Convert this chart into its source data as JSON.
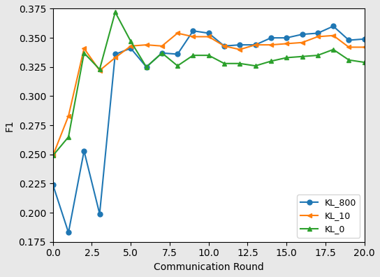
{
  "title": "",
  "xlabel": "Communication Round",
  "ylabel": "F1",
  "xlim": [
    0,
    20
  ],
  "ylim": [
    0.175,
    0.375
  ],
  "yticks": [
    0.175,
    0.2,
    0.225,
    0.25,
    0.275,
    0.3,
    0.325,
    0.35,
    0.375
  ],
  "xticks": [
    0.0,
    2.5,
    5.0,
    7.5,
    10.0,
    12.5,
    15.0,
    17.5,
    20.0
  ],
  "kl_800": {
    "x": [
      0,
      1,
      2,
      3,
      4,
      5,
      6,
      7,
      8,
      9,
      10,
      11,
      12,
      13,
      14,
      15,
      16,
      17,
      18,
      19,
      20
    ],
    "y": [
      0.224,
      0.183,
      0.253,
      0.199,
      0.336,
      0.341,
      0.325,
      0.337,
      0.336,
      0.356,
      0.354,
      0.343,
      0.344,
      0.344,
      0.35,
      0.35,
      0.353,
      0.354,
      0.36,
      0.348,
      0.349
    ],
    "color": "#1f77b4",
    "marker": "o",
    "label": "KL_800"
  },
  "kl_10": {
    "x": [
      0,
      1,
      2,
      3,
      4,
      5,
      6,
      7,
      8,
      9,
      10,
      11,
      12,
      13,
      14,
      15,
      16,
      17,
      18,
      19,
      20
    ],
    "y": [
      0.249,
      0.283,
      0.341,
      0.322,
      0.333,
      0.343,
      0.344,
      0.343,
      0.354,
      0.351,
      0.351,
      0.343,
      0.34,
      0.344,
      0.344,
      0.345,
      0.346,
      0.351,
      0.352,
      0.342,
      0.342
    ],
    "color": "#ff7f0e",
    "marker": "<",
    "label": "KL_10"
  },
  "kl_0": {
    "x": [
      0,
      1,
      2,
      3,
      4,
      5,
      6,
      7,
      8,
      9,
      10,
      11,
      12,
      13,
      14,
      15,
      16,
      17,
      18,
      19,
      20
    ],
    "y": [
      0.249,
      0.265,
      0.337,
      0.323,
      0.372,
      0.347,
      0.325,
      0.337,
      0.326,
      0.335,
      0.335,
      0.328,
      0.328,
      0.326,
      0.33,
      0.333,
      0.334,
      0.335,
      0.34,
      0.331,
      0.329
    ],
    "color": "#2ca02c",
    "marker": "^",
    "label": "KL_0"
  },
  "legend_loc": "lower right",
  "fig_facecolor": "#e8e8e8",
  "axes_facecolor": "#ffffff"
}
